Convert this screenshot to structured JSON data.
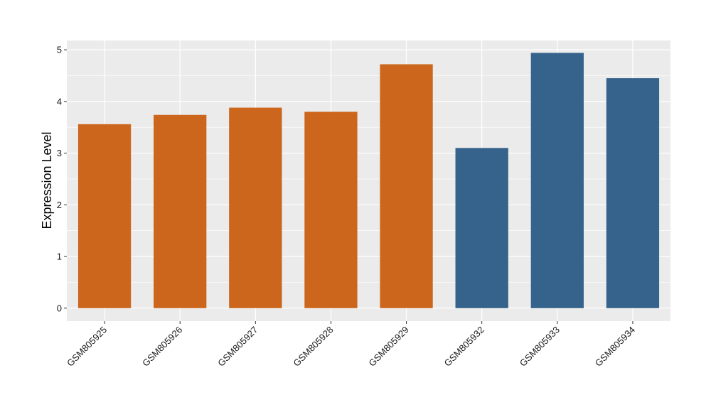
{
  "chart_data": {
    "type": "bar",
    "title": "",
    "xlabel": "",
    "ylabel": "Expression Level",
    "categories": [
      "GSM805925",
      "GSM805926",
      "GSM805927",
      "GSM805928",
      "GSM805929",
      "GSM805932",
      "GSM805933",
      "GSM805934"
    ],
    "values": [
      3.56,
      3.74,
      3.88,
      3.8,
      4.72,
      3.1,
      4.94,
      4.45
    ],
    "groups": [
      "a",
      "a",
      "a",
      "a",
      "a",
      "b",
      "b",
      "b"
    ],
    "group_colors": {
      "a": "#CC661C",
      "b": "#35638B"
    },
    "ylim": [
      -0.25,
      5.18
    ],
    "yticks": [
      0,
      1,
      2,
      3,
      4,
      5
    ],
    "grid": true,
    "panel_background": "#EBEBEB",
    "grid_color": "#FFFFFF",
    "legend": "none"
  }
}
